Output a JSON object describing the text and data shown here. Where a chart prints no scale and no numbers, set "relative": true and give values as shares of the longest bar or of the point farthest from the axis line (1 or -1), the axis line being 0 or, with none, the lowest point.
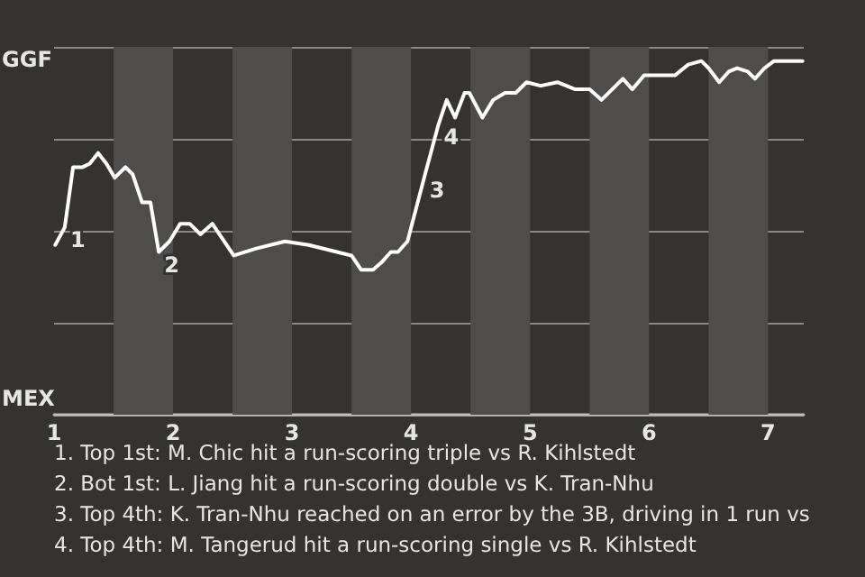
{
  "chart_data": {
    "type": "line",
    "relative": true,
    "x": [
      1.01,
      1.09,
      1.16,
      1.24,
      1.3,
      1.37,
      1.44,
      1.51,
      1.6,
      1.66,
      1.74,
      1.81,
      1.88,
      1.97,
      2.06,
      2.14,
      2.23,
      2.33,
      2.51,
      2.7,
      2.94,
      3.14,
      3.5,
      3.58,
      3.68,
      3.75,
      3.83,
      3.89,
      3.97,
      4.11,
      4.23,
      4.3,
      4.37,
      4.45,
      4.49,
      4.6,
      4.69,
      4.79,
      4.88,
      4.97,
      5.09,
      5.23,
      5.38,
      5.5,
      5.6,
      5.69,
      5.78,
      5.86,
      5.96,
      6.05,
      6.14,
      6.22,
      6.33,
      6.44,
      6.5,
      6.59,
      6.67,
      6.74,
      6.83,
      6.89,
      6.97,
      7.05,
      7.13,
      7.2,
      7.29
    ],
    "series": [
      {
        "color": "#ffffff",
        "values": [
          0.48,
          0.53,
          0.7,
          0.7,
          0.71,
          0.74,
          0.71,
          0.67,
          0.7,
          0.68,
          0.6,
          0.6,
          0.46,
          0.49,
          0.54,
          0.54,
          0.51,
          0.54,
          0.45,
          0.47,
          0.49,
          0.48,
          0.45,
          0.41,
          0.41,
          0.43,
          0.46,
          0.46,
          0.49,
          0.67,
          0.82,
          0.89,
          0.84,
          0.91,
          0.91,
          0.84,
          0.89,
          0.91,
          0.91,
          0.94,
          0.93,
          0.94,
          0.92,
          0.92,
          0.89,
          0.92,
          0.95,
          0.92,
          0.96,
          0.96,
          0.96,
          0.96,
          0.99,
          1,
          0.98,
          0.94,
          0.97,
          0.98,
          0.97,
          0.95,
          0.98,
          1,
          1,
          1,
          1
        ]
      }
    ],
    "xlim": [
      1,
      7.3
    ],
    "xticks": [
      1,
      2,
      3,
      4,
      5,
      6,
      7
    ],
    "grid": "y",
    "marker": "none",
    "line_style": "solid",
    "bands": [
      {
        "axis": "x",
        "from": 1.5,
        "to": 2,
        "color": "#4e4d4b"
      },
      {
        "axis": "x",
        "from": 2.5,
        "to": 3,
        "color": "#4e4d4b"
      },
      {
        "axis": "x",
        "from": 3.5,
        "to": 4,
        "color": "#4e4d4b"
      },
      {
        "axis": "x",
        "from": 4.5,
        "to": 5,
        "color": "#4e4d4b"
      },
      {
        "axis": "x",
        "from": 5.5,
        "to": 6,
        "color": "#4e4d4b"
      },
      {
        "axis": "x",
        "from": 6.5,
        "to": 7,
        "color": "#4e4d4b"
      }
    ],
    "annotations": [
      "GGF",
      "MEX",
      {
        "text": "1",
        "x": 1.09,
        "y": 0.53
      },
      {
        "text": "2",
        "x": 1.88,
        "y": 0.46
      },
      {
        "text": "3",
        "x": 4.11,
        "y": 0.67
      },
      {
        "text": "4",
        "x": 4.23,
        "y": 0.82
      },
      "1. Top 1st: M. Chic hit a run-scoring triple vs R. Kihlstedt",
      "2. Bot 1st: L. Jiang hit a run-scoring double vs K. Tran-Nhu",
      "3. Top 4th: K. Tran-Nhu reached on an error by the 3B, driving in 1 run vs",
      "4. Top 4th: M. Tangerud hit a run-scoring single vs R. Kihlstedt"
    ]
  }
}
